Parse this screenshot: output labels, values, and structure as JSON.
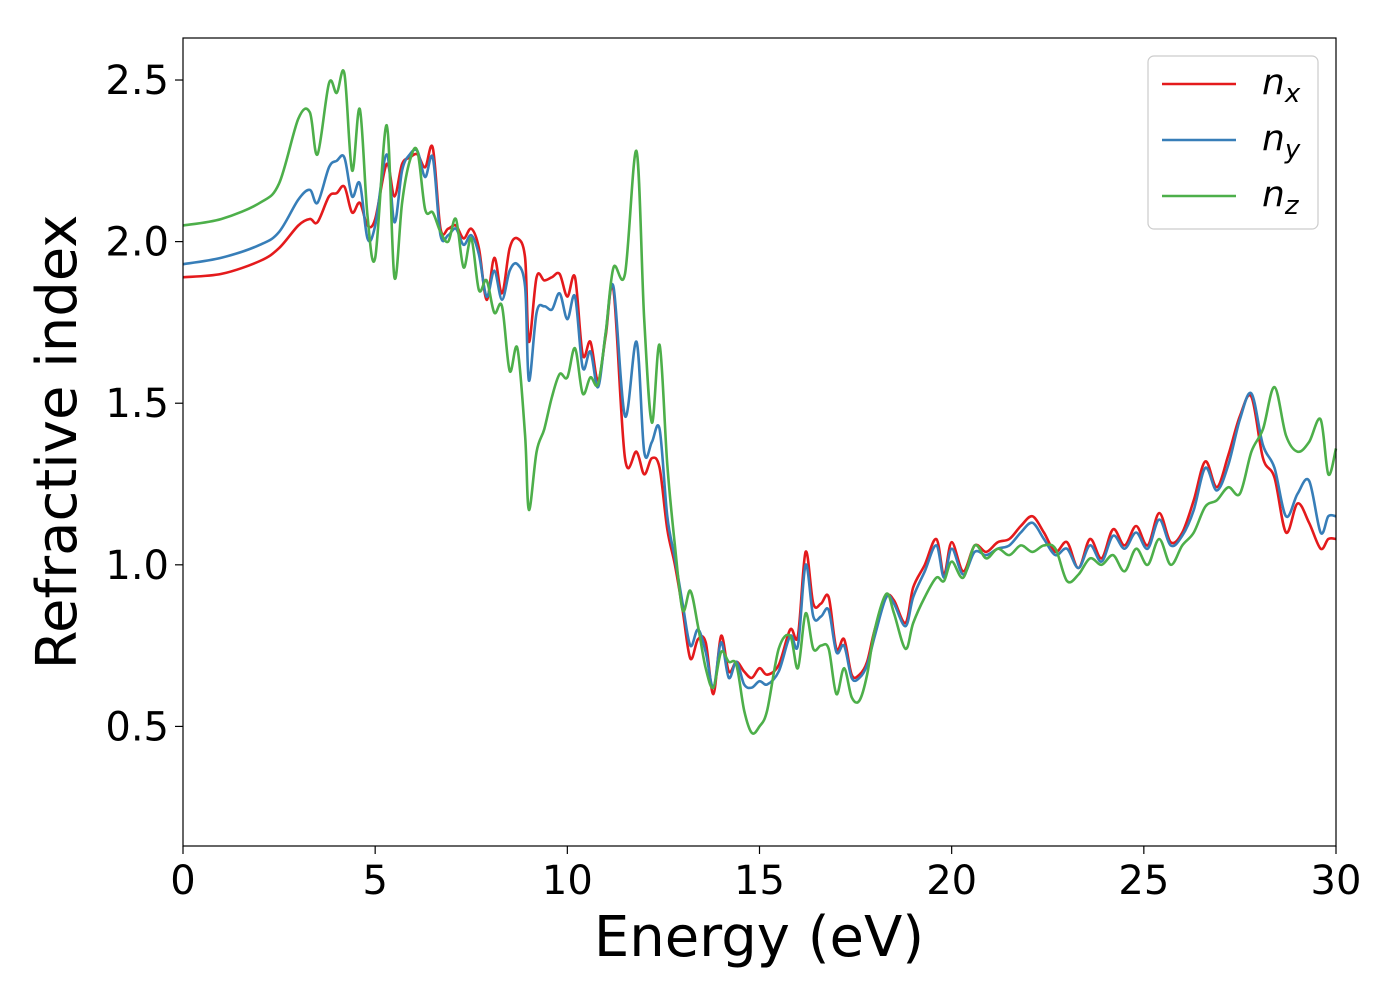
{
  "chart_data": {
    "type": "line",
    "xlabel": "Energy (eV)",
    "ylabel": "Refractive index",
    "xlim": [
      0,
      30
    ],
    "ylim": [
      0.13,
      2.63
    ],
    "xticks": [
      0,
      5,
      10,
      15,
      20,
      25,
      30
    ],
    "xtick_labels": [
      "0",
      "5",
      "10",
      "15",
      "20",
      "25",
      "30"
    ],
    "yticks": [
      0.5,
      1.0,
      1.5,
      2.0,
      2.5
    ],
    "ytick_labels": [
      "0.5",
      "1.0",
      "1.5",
      "2.0",
      "2.5"
    ],
    "grid": false,
    "legend": {
      "position": "top-right",
      "entries": [
        {
          "base": "n",
          "sub": "x",
          "color": "#e41a1c"
        },
        {
          "base": "n",
          "sub": "y",
          "color": "#377eb8"
        },
        {
          "base": "n",
          "sub": "z",
          "color": "#4daf4a"
        }
      ]
    },
    "series": [
      {
        "name": "n_x",
        "color": "#e41a1c",
        "x": [
          0,
          1,
          2,
          2.5,
          3,
          3.3,
          3.5,
          3.8,
          4.0,
          4.2,
          4.4,
          4.6,
          4.8,
          5.0,
          5.3,
          5.5,
          5.7,
          5.9,
          6.1,
          6.3,
          6.5,
          6.7,
          6.9,
          7.1,
          7.3,
          7.5,
          7.7,
          7.9,
          8.1,
          8.3,
          8.5,
          8.7,
          8.9,
          9.0,
          9.2,
          9.4,
          9.6,
          9.8,
          10.0,
          10.2,
          10.4,
          10.6,
          10.8,
          11.0,
          11.2,
          11.5,
          11.8,
          12.0,
          12.2,
          12.4,
          12.6,
          12.8,
          13.0,
          13.2,
          13.4,
          13.6,
          13.8,
          14.0,
          14.2,
          14.4,
          14.6,
          14.8,
          15.0,
          15.2,
          15.5,
          15.8,
          16.0,
          16.2,
          16.4,
          16.6,
          16.8,
          17.0,
          17.2,
          17.4,
          17.6,
          17.8,
          18.0,
          18.3,
          18.5,
          18.8,
          19.0,
          19.3,
          19.6,
          19.8,
          20.0,
          20.3,
          20.6,
          20.9,
          21.2,
          21.5,
          21.8,
          22.1,
          22.4,
          22.7,
          23.0,
          23.3,
          23.6,
          23.9,
          24.2,
          24.5,
          24.8,
          25.1,
          25.4,
          25.7,
          26.0,
          26.3,
          26.6,
          26.9,
          27.2,
          27.5,
          27.8,
          28.1,
          28.4,
          28.7,
          29.0,
          29.3,
          29.6,
          29.8,
          30.0
        ],
        "y": [
          1.89,
          1.9,
          1.94,
          1.98,
          2.05,
          2.07,
          2.06,
          2.14,
          2.15,
          2.17,
          2.09,
          2.12,
          2.05,
          2.07,
          2.24,
          2.14,
          2.24,
          2.26,
          2.27,
          2.23,
          2.29,
          2.04,
          2.04,
          2.05,
          2.01,
          2.04,
          1.98,
          1.82,
          1.95,
          1.84,
          1.98,
          2.01,
          1.95,
          1.69,
          1.89,
          1.88,
          1.89,
          1.9,
          1.83,
          1.89,
          1.65,
          1.69,
          1.57,
          1.71,
          1.85,
          1.33,
          1.35,
          1.28,
          1.33,
          1.3,
          1.11,
          1.0,
          0.86,
          0.71,
          0.77,
          0.76,
          0.6,
          0.78,
          0.67,
          0.7,
          0.67,
          0.65,
          0.68,
          0.66,
          0.69,
          0.8,
          0.78,
          1.04,
          0.88,
          0.88,
          0.9,
          0.74,
          0.77,
          0.66,
          0.66,
          0.7,
          0.8,
          0.9,
          0.89,
          0.82,
          0.93,
          1.0,
          1.08,
          0.97,
          1.07,
          0.98,
          1.06,
          1.04,
          1.07,
          1.08,
          1.12,
          1.15,
          1.1,
          1.04,
          1.07,
          0.99,
          1.08,
          1.02,
          1.11,
          1.06,
          1.12,
          1.06,
          1.16,
          1.07,
          1.1,
          1.2,
          1.32,
          1.24,
          1.34,
          1.46,
          1.52,
          1.33,
          1.27,
          1.1,
          1.19,
          1.13,
          1.05,
          1.08,
          1.08
        ]
      },
      {
        "name": "n_y",
        "color": "#377eb8",
        "x": [
          0,
          1,
          2,
          2.5,
          3,
          3.3,
          3.5,
          3.8,
          4.0,
          4.2,
          4.4,
          4.6,
          4.8,
          5.0,
          5.3,
          5.5,
          5.7,
          5.9,
          6.1,
          6.3,
          6.5,
          6.7,
          6.9,
          7.1,
          7.3,
          7.5,
          7.7,
          7.9,
          8.1,
          8.3,
          8.5,
          8.7,
          8.9,
          9.0,
          9.2,
          9.4,
          9.6,
          9.8,
          10.0,
          10.2,
          10.4,
          10.6,
          10.8,
          11.0,
          11.2,
          11.5,
          11.8,
          12.0,
          12.2,
          12.4,
          12.6,
          12.8,
          13.0,
          13.2,
          13.4,
          13.6,
          13.8,
          14.0,
          14.2,
          14.4,
          14.6,
          14.8,
          15.0,
          15.2,
          15.5,
          15.8,
          16.0,
          16.2,
          16.4,
          16.6,
          16.8,
          17.0,
          17.2,
          17.4,
          17.6,
          17.8,
          18.0,
          18.3,
          18.5,
          18.8,
          19.0,
          19.3,
          19.6,
          19.8,
          20.0,
          20.3,
          20.6,
          20.9,
          21.2,
          21.5,
          21.8,
          22.1,
          22.4,
          22.7,
          23.0,
          23.3,
          23.6,
          23.9,
          24.2,
          24.5,
          24.8,
          25.1,
          25.4,
          25.7,
          26.0,
          26.3,
          26.6,
          26.9,
          27.2,
          27.5,
          27.8,
          28.1,
          28.4,
          28.7,
          29.0,
          29.3,
          29.6,
          29.8,
          30.0
        ],
        "y": [
          1.93,
          1.95,
          1.99,
          2.03,
          2.13,
          2.16,
          2.12,
          2.23,
          2.25,
          2.26,
          2.14,
          2.18,
          2.01,
          2.05,
          2.27,
          2.06,
          2.22,
          2.27,
          2.28,
          2.2,
          2.26,
          2.02,
          2.02,
          2.04,
          1.99,
          2.02,
          1.96,
          1.83,
          1.91,
          1.82,
          1.91,
          1.93,
          1.86,
          1.57,
          1.78,
          1.8,
          1.79,
          1.84,
          1.76,
          1.83,
          1.61,
          1.66,
          1.55,
          1.72,
          1.86,
          1.46,
          1.69,
          1.35,
          1.38,
          1.42,
          1.15,
          1.02,
          0.88,
          0.75,
          0.8,
          0.73,
          0.62,
          0.76,
          0.65,
          0.7,
          0.63,
          0.62,
          0.64,
          0.63,
          0.67,
          0.78,
          0.75,
          1.0,
          0.84,
          0.84,
          0.86,
          0.73,
          0.75,
          0.65,
          0.65,
          0.69,
          0.78,
          0.9,
          0.88,
          0.81,
          0.9,
          0.98,
          1.06,
          0.96,
          1.05,
          0.97,
          1.04,
          1.03,
          1.05,
          1.06,
          1.1,
          1.13,
          1.08,
          1.03,
          1.05,
          0.99,
          1.06,
          1.01,
          1.09,
          1.05,
          1.1,
          1.05,
          1.14,
          1.06,
          1.09,
          1.17,
          1.3,
          1.23,
          1.31,
          1.45,
          1.53,
          1.37,
          1.3,
          1.15,
          1.22,
          1.26,
          1.1,
          1.15,
          1.15
        ]
      },
      {
        "name": "n_z",
        "color": "#4daf4a",
        "x": [
          0,
          1,
          2,
          2.5,
          3,
          3.3,
          3.5,
          3.8,
          4.0,
          4.2,
          4.4,
          4.6,
          4.8,
          5.0,
          5.3,
          5.5,
          5.7,
          5.9,
          6.1,
          6.3,
          6.5,
          6.7,
          6.9,
          7.1,
          7.3,
          7.5,
          7.7,
          7.9,
          8.1,
          8.3,
          8.5,
          8.7,
          8.9,
          9.0,
          9.2,
          9.4,
          9.6,
          9.8,
          10.0,
          10.2,
          10.4,
          10.6,
          10.8,
          11.0,
          11.2,
          11.5,
          11.8,
          12.0,
          12.2,
          12.4,
          12.6,
          12.8,
          13.0,
          13.2,
          13.4,
          13.6,
          13.8,
          14.0,
          14.2,
          14.4,
          14.6,
          14.8,
          15.0,
          15.2,
          15.5,
          15.8,
          16.0,
          16.2,
          16.4,
          16.6,
          16.8,
          17.0,
          17.2,
          17.4,
          17.6,
          17.8,
          18.0,
          18.3,
          18.5,
          18.8,
          19.0,
          19.3,
          19.6,
          19.8,
          20.0,
          20.3,
          20.6,
          20.9,
          21.2,
          21.5,
          21.8,
          22.1,
          22.4,
          22.7,
          23.0,
          23.3,
          23.6,
          23.9,
          24.2,
          24.5,
          24.8,
          25.1,
          25.4,
          25.7,
          26.0,
          26.3,
          26.6,
          26.9,
          27.2,
          27.5,
          27.8,
          28.1,
          28.4,
          28.7,
          29.0,
          29.3,
          29.6,
          29.8,
          30.0
        ],
        "y": [
          2.05,
          2.07,
          2.12,
          2.18,
          2.38,
          2.4,
          2.27,
          2.49,
          2.46,
          2.52,
          2.22,
          2.41,
          2.08,
          1.95,
          2.36,
          1.89,
          2.12,
          2.25,
          2.28,
          2.1,
          2.09,
          2.03,
          2.0,
          2.07,
          1.92,
          2.01,
          1.85,
          1.88,
          1.78,
          1.8,
          1.6,
          1.67,
          1.4,
          1.17,
          1.35,
          1.42,
          1.52,
          1.59,
          1.58,
          1.67,
          1.53,
          1.58,
          1.56,
          1.72,
          1.92,
          1.9,
          2.28,
          1.76,
          1.44,
          1.68,
          1.31,
          1.06,
          0.86,
          0.92,
          0.81,
          0.68,
          0.62,
          0.73,
          0.7,
          0.69,
          0.55,
          0.48,
          0.5,
          0.55,
          0.74,
          0.78,
          0.68,
          0.85,
          0.74,
          0.75,
          0.74,
          0.6,
          0.68,
          0.59,
          0.58,
          0.66,
          0.8,
          0.91,
          0.85,
          0.74,
          0.82,
          0.9,
          0.96,
          0.95,
          1.01,
          0.96,
          1.06,
          1.02,
          1.05,
          1.03,
          1.06,
          1.04,
          1.06,
          1.05,
          0.95,
          0.97,
          1.02,
          1.0,
          1.03,
          0.98,
          1.05,
          1.0,
          1.08,
          1.0,
          1.06,
          1.1,
          1.18,
          1.2,
          1.24,
          1.22,
          1.35,
          1.42,
          1.55,
          1.4,
          1.35,
          1.38,
          1.45,
          1.28,
          1.36
        ]
      }
    ]
  }
}
